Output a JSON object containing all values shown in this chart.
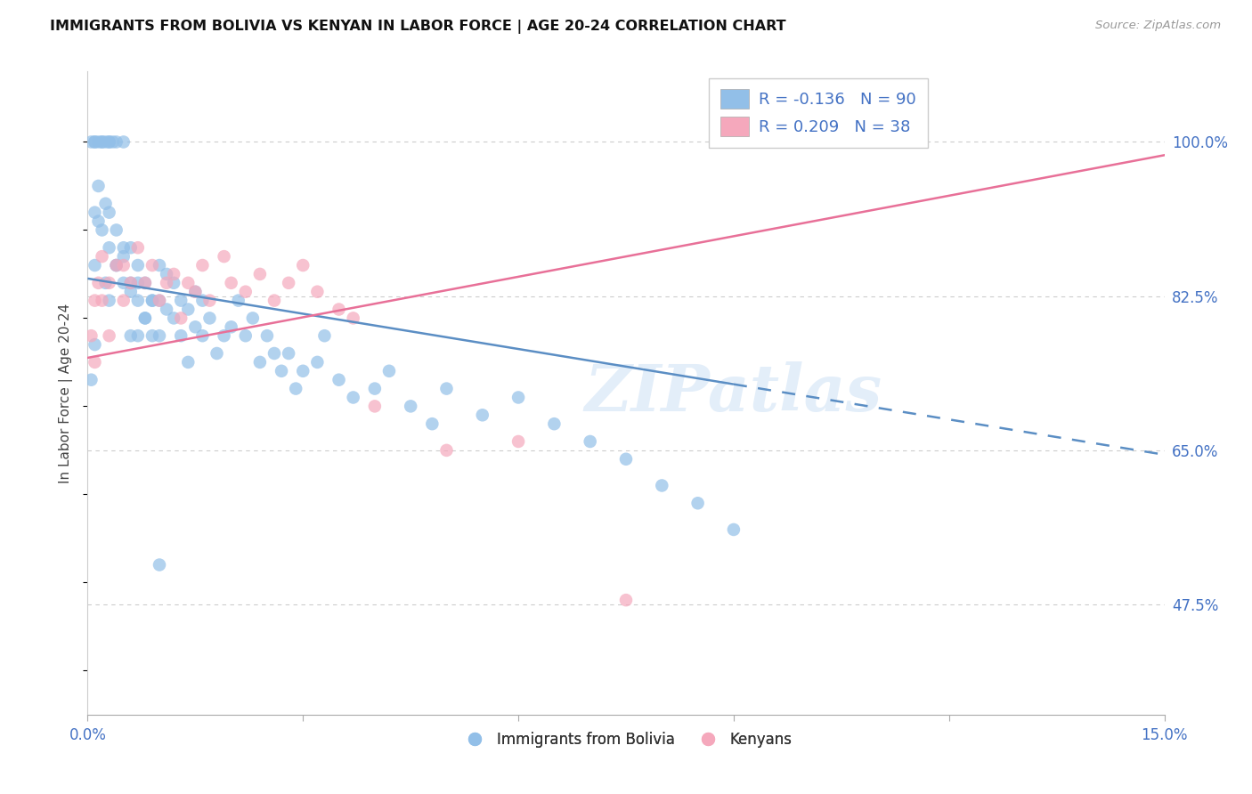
{
  "title": "IMMIGRANTS FROM BOLIVIA VS KENYAN IN LABOR FORCE | AGE 20-24 CORRELATION CHART",
  "source_text": "Source: ZipAtlas.com",
  "ylabel": "In Labor Force | Age 20-24",
  "xlim": [
    0.0,
    0.15
  ],
  "ylim": [
    0.35,
    1.08
  ],
  "yticks": [
    0.475,
    0.65,
    0.825,
    1.0
  ],
  "yticklabels": [
    "47.5%",
    "65.0%",
    "82.5%",
    "100.0%"
  ],
  "xtick_positions": [
    0.0,
    0.03,
    0.06,
    0.09,
    0.12,
    0.15
  ],
  "xticklabels": [
    "0.0%",
    "",
    "",
    "",
    "",
    "15.0%"
  ],
  "bolivia_R": -0.136,
  "bolivia_N": 90,
  "kenyan_R": 0.209,
  "kenyan_N": 38,
  "bolivia_color": "#92bfe8",
  "kenyan_color": "#f5a8bc",
  "bolivia_line_color": "#5b8ec4",
  "kenyan_line_color": "#e87098",
  "bolivia_line_solid_end": 0.09,
  "bolivia_line_x0": 0.0,
  "bolivia_line_y0": 0.845,
  "bolivia_line_x1": 0.15,
  "bolivia_line_y1": 0.645,
  "kenyan_line_x0": 0.0,
  "kenyan_line_y0": 0.755,
  "kenyan_line_x1": 0.15,
  "kenyan_line_y1": 0.985,
  "legend_label_bolivia": "Immigrants from Bolivia",
  "legend_label_kenyan": "Kenyans",
  "watermark_text": "ZIPatlas",
  "bolivia_x": [
    0.0005,
    0.001,
    0.001,
    0.001,
    0.0015,
    0.0015,
    0.002,
    0.002,
    0.0025,
    0.0025,
    0.003,
    0.003,
    0.003,
    0.003,
    0.0035,
    0.004,
    0.004,
    0.004,
    0.005,
    0.005,
    0.005,
    0.006,
    0.006,
    0.006,
    0.007,
    0.007,
    0.007,
    0.008,
    0.008,
    0.009,
    0.009,
    0.01,
    0.01,
    0.01,
    0.011,
    0.011,
    0.012,
    0.012,
    0.013,
    0.013,
    0.014,
    0.014,
    0.015,
    0.015,
    0.016,
    0.016,
    0.017,
    0.018,
    0.019,
    0.02,
    0.021,
    0.022,
    0.023,
    0.024,
    0.025,
    0.026,
    0.027,
    0.028,
    0.029,
    0.03,
    0.032,
    0.033,
    0.035,
    0.037,
    0.04,
    0.042,
    0.045,
    0.048,
    0.05,
    0.055,
    0.06,
    0.065,
    0.07,
    0.075,
    0.08,
    0.085,
    0.09,
    0.0005,
    0.001,
    0.001,
    0.0015,
    0.002,
    0.0025,
    0.003,
    0.004,
    0.005,
    0.006,
    0.007,
    0.008,
    0.009,
    0.01
  ],
  "bolivia_y": [
    1.0,
    1.0,
    1.0,
    0.77,
    1.0,
    0.91,
    1.0,
    1.0,
    1.0,
    0.84,
    1.0,
    1.0,
    0.88,
    0.82,
    1.0,
    1.0,
    0.9,
    0.86,
    1.0,
    0.87,
    0.84,
    0.88,
    0.84,
    0.78,
    0.86,
    0.82,
    0.78,
    0.84,
    0.8,
    0.82,
    0.78,
    0.86,
    0.82,
    0.78,
    0.85,
    0.81,
    0.84,
    0.8,
    0.82,
    0.78,
    0.81,
    0.75,
    0.83,
    0.79,
    0.82,
    0.78,
    0.8,
    0.76,
    0.78,
    0.79,
    0.82,
    0.78,
    0.8,
    0.75,
    0.78,
    0.76,
    0.74,
    0.76,
    0.72,
    0.74,
    0.75,
    0.78,
    0.73,
    0.71,
    0.72,
    0.74,
    0.7,
    0.68,
    0.72,
    0.69,
    0.71,
    0.68,
    0.66,
    0.64,
    0.61,
    0.59,
    0.56,
    0.73,
    0.92,
    0.86,
    0.95,
    0.9,
    0.93,
    0.92,
    0.86,
    0.88,
    0.83,
    0.84,
    0.8,
    0.82,
    0.52
  ],
  "kenyan_x": [
    0.0005,
    0.001,
    0.001,
    0.0015,
    0.002,
    0.002,
    0.003,
    0.003,
    0.004,
    0.005,
    0.005,
    0.006,
    0.007,
    0.008,
    0.009,
    0.01,
    0.011,
    0.012,
    0.013,
    0.014,
    0.015,
    0.016,
    0.017,
    0.019,
    0.02,
    0.022,
    0.024,
    0.026,
    0.028,
    0.03,
    0.032,
    0.035,
    0.037,
    0.04,
    0.05,
    0.06,
    0.075,
    0.105
  ],
  "kenyan_y": [
    0.78,
    0.82,
    0.75,
    0.84,
    0.87,
    0.82,
    0.84,
    0.78,
    0.86,
    0.86,
    0.82,
    0.84,
    0.88,
    0.84,
    0.86,
    0.82,
    0.84,
    0.85,
    0.8,
    0.84,
    0.83,
    0.86,
    0.82,
    0.87,
    0.84,
    0.83,
    0.85,
    0.82,
    0.84,
    0.86,
    0.83,
    0.81,
    0.8,
    0.7,
    0.65,
    0.66,
    0.48,
    1.0
  ]
}
